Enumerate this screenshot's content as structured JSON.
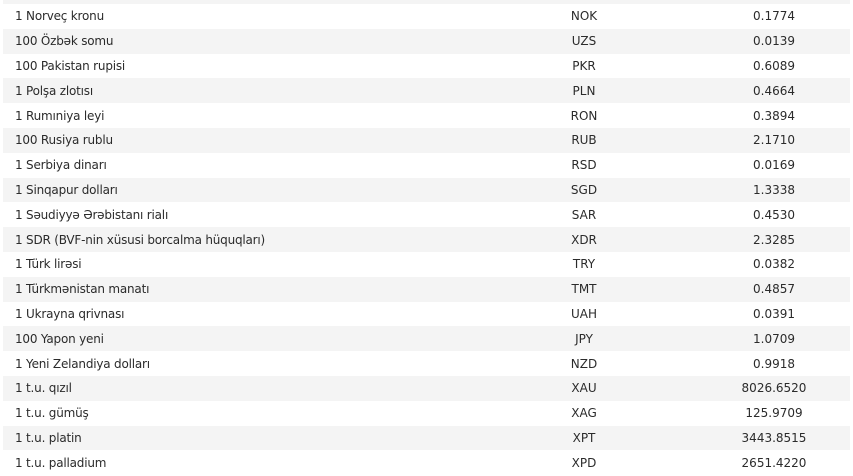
{
  "rates": [
    {
      "name": "",
      "code": "",
      "value": ""
    },
    {
      "name": "1 Norveç kronu",
      "code": "NOK",
      "value": "0.1774"
    },
    {
      "name": "100 Özbək somu",
      "code": "UZS",
      "value": "0.0139"
    },
    {
      "name": "100 Pakistan rupisi",
      "code": "PKR",
      "value": "0.6089"
    },
    {
      "name": "1 Polşa zlotısı",
      "code": "PLN",
      "value": "0.4664"
    },
    {
      "name": "1 Rumıniya leyi",
      "code": "RON",
      "value": "0.3894"
    },
    {
      "name": "100 Rusiya rublu",
      "code": "RUB",
      "value": "2.1710"
    },
    {
      "name": "1 Serbiya dinarı",
      "code": "RSD",
      "value": "0.0169"
    },
    {
      "name": "1 Sinqapur dolları",
      "code": "SGD",
      "value": "1.3338"
    },
    {
      "name": "1 Səudiyyə Ərəbistanı rialı",
      "code": "SAR",
      "value": "0.4530"
    },
    {
      "name": "1 SDR (BVF-nin xüsusi borcalma hüquqları)",
      "code": "XDR",
      "value": "2.3285"
    },
    {
      "name": "1 Türk lirəsi",
      "code": "TRY",
      "value": "0.0382"
    },
    {
      "name": "1 Türkmənistan manatı",
      "code": "TMT",
      "value": "0.4857"
    },
    {
      "name": "1 Ukrayna qrivnası",
      "code": "UAH",
      "value": "0.0391"
    },
    {
      "name": "100 Yapon yeni",
      "code": "JPY",
      "value": "1.0709"
    },
    {
      "name": "1 Yeni Zelandiya dolları",
      "code": "NZD",
      "value": "0.9918"
    },
    {
      "name": "1 t.u. qızıl",
      "code": "XAU",
      "value": "8026.6520"
    },
    {
      "name": "1 t.u. gümüş",
      "code": "XAG",
      "value": "125.9709"
    },
    {
      "name": "1 t.u. platin",
      "code": "XPT",
      "value": "3443.8515"
    },
    {
      "name": "1 t.u. palladium",
      "code": "XPD",
      "value": "2651.4220"
    }
  ]
}
